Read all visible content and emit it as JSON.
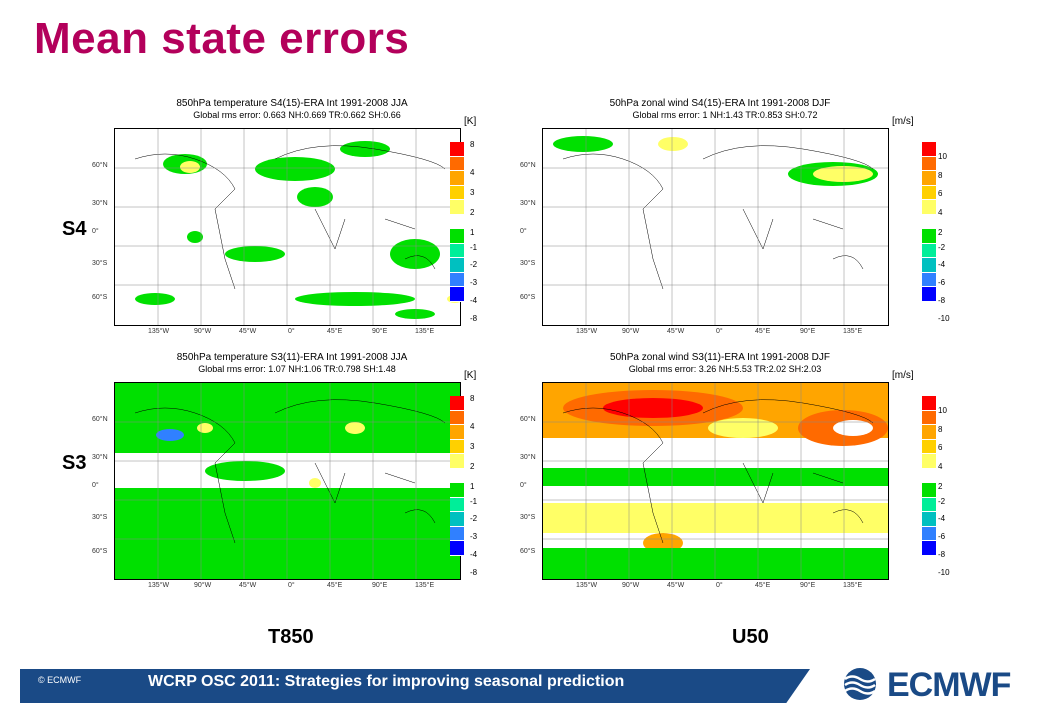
{
  "title": "Mean state errors",
  "row_labels": [
    "S4",
    "S3"
  ],
  "col_labels": [
    "T850",
    "U50"
  ],
  "panels": [
    {
      "title": "850hPa temperature S4(15)-ERA Int 1991-2008 JJA",
      "subtitle": "Global rms error: 0.663 NH:0.669 TR:0.662 SH:0.66",
      "unit": "[K]",
      "levels": [
        "8",
        "4",
        "3",
        "2",
        "1",
        "-1",
        "-2",
        "-3",
        "-4",
        "-8"
      ]
    },
    {
      "title": "50hPa zonal wind S4(15)-ERA Int 1991-2008 DJF",
      "subtitle": "Global rms error: 1 NH:1.43 TR:0.853 SH:0.72",
      "unit": "[m/s]",
      "levels": [
        "10",
        "8",
        "6",
        "4",
        "2",
        "-2",
        "-4",
        "-6",
        "-8",
        "-10"
      ]
    },
    {
      "title": "850hPa temperature S3(11)-ERA Int 1991-2008 JJA",
      "subtitle": "Global rms error: 1.07 NH:1.06 TR:0.798 SH:1.48",
      "unit": "[K]",
      "levels": [
        "8",
        "4",
        "3",
        "2",
        "1",
        "-1",
        "-2",
        "-3",
        "-4",
        "-8"
      ]
    },
    {
      "title": "50hPa zonal wind S3(11)-ERA Int 1991-2008 DJF",
      "subtitle": "Global rms error: 3.26 NH:5.53 TR:2.02 SH:2.03",
      "unit": "[m/s]",
      "levels": [
        "10",
        "8",
        "6",
        "4",
        "2",
        "-2",
        "-4",
        "-6",
        "-8",
        "-10"
      ]
    }
  ],
  "lat_ticks": [
    "60°N",
    "30°N",
    "0°",
    "30°S",
    "60°S"
  ],
  "lon_ticks": [
    "135°W",
    "90°W",
    "45°W",
    "0°",
    "45°E",
    "90°E",
    "135°E"
  ],
  "colors": {
    "accent": "#b3005b",
    "footer": "#1a4a86"
  },
  "colorbar": [
    "#ff0000",
    "#ff6a00",
    "#ffa500",
    "#ffd000",
    "#ffff66",
    "#00e000",
    "#00ee99",
    "#00c0c0",
    "#3080ff",
    "#0000ff"
  ],
  "footer": {
    "copyright": "© ECMWF",
    "text": "WCRP OSC 2011: Strategies for improving seasonal prediction"
  },
  "logo": {
    "text": "ECMWF",
    "icon": "ecmwf-waves-icon"
  }
}
